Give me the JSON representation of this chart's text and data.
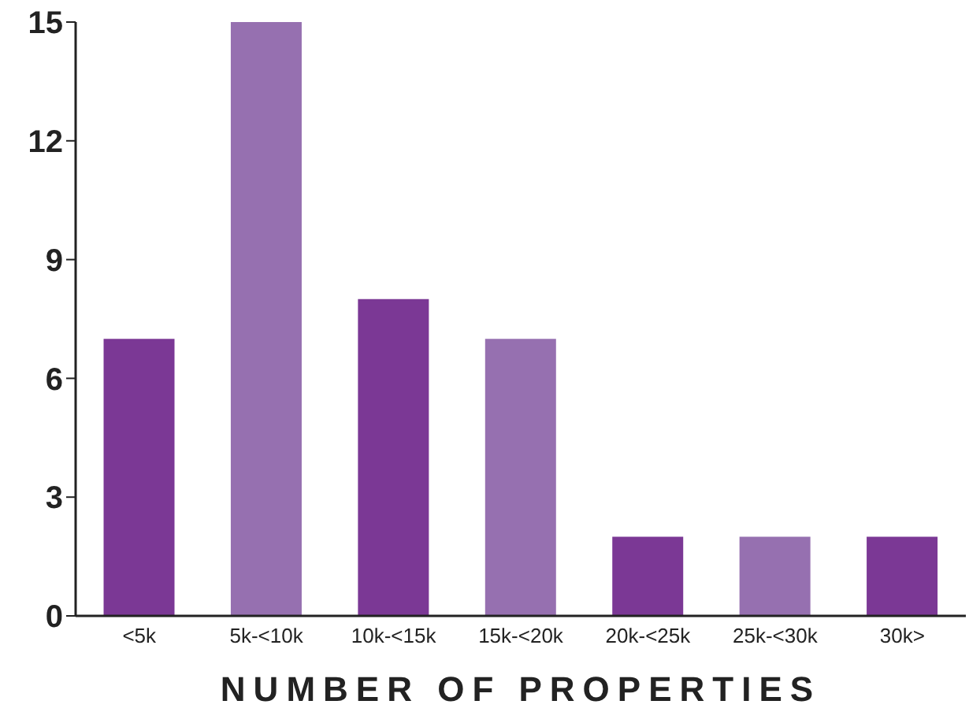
{
  "chart_data": {
    "type": "bar",
    "xlabel": "NUMBER OF PROPERTIES",
    "categories": [
      "<5k",
      "5k-<10k",
      "10k-<15k",
      "15k-<20k",
      "20k-<25k",
      "25k-<30k",
      "30k>"
    ],
    "values": [
      7,
      15,
      8,
      7,
      2,
      2,
      2
    ],
    "colors": [
      "#7b3895",
      "#9670b0",
      "#7b3895",
      "#9670b0",
      "#7b3895",
      "#9670b0",
      "#7b3895"
    ],
    "ylim": [
      0,
      15
    ],
    "yticks": [
      0,
      3,
      6,
      9,
      12,
      15
    ],
    "grid": false,
    "legend": false
  }
}
